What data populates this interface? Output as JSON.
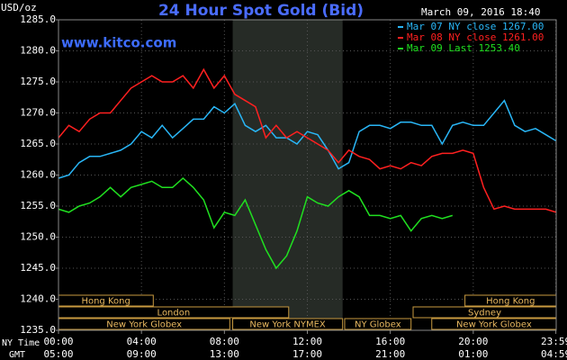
{
  "chart_data": {
    "type": "line",
    "title": "24 Hour Spot Gold (Bid)",
    "timestamp": "March 09, 2016 18:40",
    "source": "www.kitco.com",
    "y_label": "USD/oz",
    "x_label": "NY Time",
    "x2_label": "GMT",
    "xlim": [
      0,
      24
    ],
    "xticks": [
      {
        "value": 0,
        "label": "00:00"
      },
      {
        "value": 4,
        "label": "04:00"
      },
      {
        "value": 8,
        "label": "08:00"
      },
      {
        "value": 12,
        "label": "12:00"
      },
      {
        "value": 16,
        "label": "16:00"
      },
      {
        "value": 20,
        "label": "20:00"
      },
      {
        "value": 23.983,
        "label": "23:59"
      }
    ],
    "x2ticks": [
      {
        "value": 0,
        "label": "05:00"
      },
      {
        "value": 4,
        "label": "09:00"
      },
      {
        "value": 8,
        "label": "13:00"
      },
      {
        "value": 12,
        "label": "17:00"
      },
      {
        "value": 16,
        "label": "21:00"
      },
      {
        "value": 20,
        "label": "01:00"
      },
      {
        "value": 23.983,
        "label": "04:59"
      }
    ],
    "ylim": [
      1235,
      1285
    ],
    "yticks": [
      {
        "value": 1235,
        "label": "1235.0"
      },
      {
        "value": 1240,
        "label": "1240.0"
      },
      {
        "value": 1245,
        "label": "1245.0"
      },
      {
        "value": 1250,
        "label": "1250.0"
      },
      {
        "value": 1255,
        "label": "1255.0"
      },
      {
        "value": 1260,
        "label": "1260.0"
      },
      {
        "value": 1265,
        "label": "1265.0"
      },
      {
        "value": 1270,
        "label": "1270.0"
      },
      {
        "value": 1275,
        "label": "1275.0"
      },
      {
        "value": 1280,
        "label": "1280.0"
      },
      {
        "value": 1285,
        "label": "1285.0"
      }
    ],
    "grid": true,
    "shade": {
      "from": 8.4,
      "to": 13.7,
      "color": "#262b26"
    },
    "sessions": [
      [
        {
          "name": "Hong Kong",
          "start": 0,
          "end": 4.57
        },
        {
          "name": "Hong Kong",
          "start": 19.6,
          "end": 24
        }
      ],
      [
        {
          "name": "London",
          "start": 0,
          "end": 11.1
        },
        {
          "name": "Sydney",
          "start": 17.1,
          "end": 24
        }
      ],
      [
        {
          "name": "New York Globex",
          "start": 0,
          "end": 8.26
        },
        {
          "name": "New York NYMEX",
          "start": 8.4,
          "end": 13.7
        },
        {
          "name": "NY Globex",
          "start": 13.8,
          "end": 17.0
        },
        {
          "name": "New York Globex",
          "start": 18.0,
          "end": 24
        }
      ]
    ],
    "x": [
      0,
      0.5,
      1,
      1.5,
      2,
      2.5,
      3,
      3.5,
      4,
      4.5,
      5,
      5.5,
      6,
      6.5,
      7,
      7.5,
      8,
      8.5,
      9,
      9.5,
      10,
      10.5,
      11,
      11.5,
      12,
      12.5,
      13,
      13.5,
      14,
      14.5,
      15,
      15.5,
      16,
      16.5,
      17,
      17.5,
      18,
      18.5,
      19,
      19.5,
      20,
      20.5,
      21,
      21.5,
      22,
      22.5,
      23,
      23.5,
      24
    ],
    "series": [
      {
        "name": "Mar 07 NY close 1267.00",
        "color": "#29b6f6",
        "values": [
          1259.5,
          1260,
          1262,
          1263,
          1263,
          1263.5,
          1264,
          1265,
          1267,
          1266,
          1268,
          1266,
          1267.5,
          1269,
          1269,
          1271,
          1270,
          1271.5,
          1268,
          1267,
          1268,
          1266,
          1266,
          1265,
          1267,
          1266.5,
          1264,
          1261,
          1262,
          1267,
          1268,
          1268,
          1267.5,
          1268.5,
          1268.5,
          1268,
          1268,
          1265,
          1268,
          1268.5,
          1268,
          1268,
          1270,
          1272,
          1268,
          1267,
          1267.5,
          1266.5,
          1265.5
        ]
      },
      {
        "name": "Mar 08 NY close 1261.00",
        "color": "#ff2020",
        "values": [
          1266,
          1268,
          1267,
          1269,
          1270,
          1270,
          1272,
          1274,
          1275,
          1276,
          1275,
          1275,
          1276,
          1274,
          1277,
          1274,
          1276,
          1273,
          1272,
          1271,
          1266,
          1268,
          1266,
          1267,
          1266,
          1265,
          1264,
          1262,
          1264,
          1263,
          1262.5,
          1261,
          1261.5,
          1261,
          1262,
          1261.5,
          1263,
          1263.5,
          1263.5,
          1264,
          1263.5,
          1258,
          1254.5,
          1255,
          1254.5,
          1254.5,
          1254.5,
          1254.5,
          1254
        ]
      },
      {
        "name": "Mar 09 Last 1253.40",
        "color": "#20e020",
        "values": [
          1254.5,
          1254,
          1255,
          1255.5,
          1256.5,
          1258,
          1256.5,
          1258,
          1258.5,
          1259,
          1258,
          1258,
          1259.5,
          1258,
          1256,
          1251.5,
          1254,
          1253.5,
          1256,
          1252,
          1248,
          1245,
          1247,
          1251,
          1256.5,
          1255.5,
          1255,
          1256.5,
          1257.5,
          1256.5,
          1253.5,
          1253.5,
          1253,
          1253.5,
          1251,
          1253,
          1253.5,
          1253,
          1253.5,
          null,
          null,
          null,
          null,
          null,
          null,
          null,
          null,
          null,
          null
        ]
      }
    ]
  }
}
